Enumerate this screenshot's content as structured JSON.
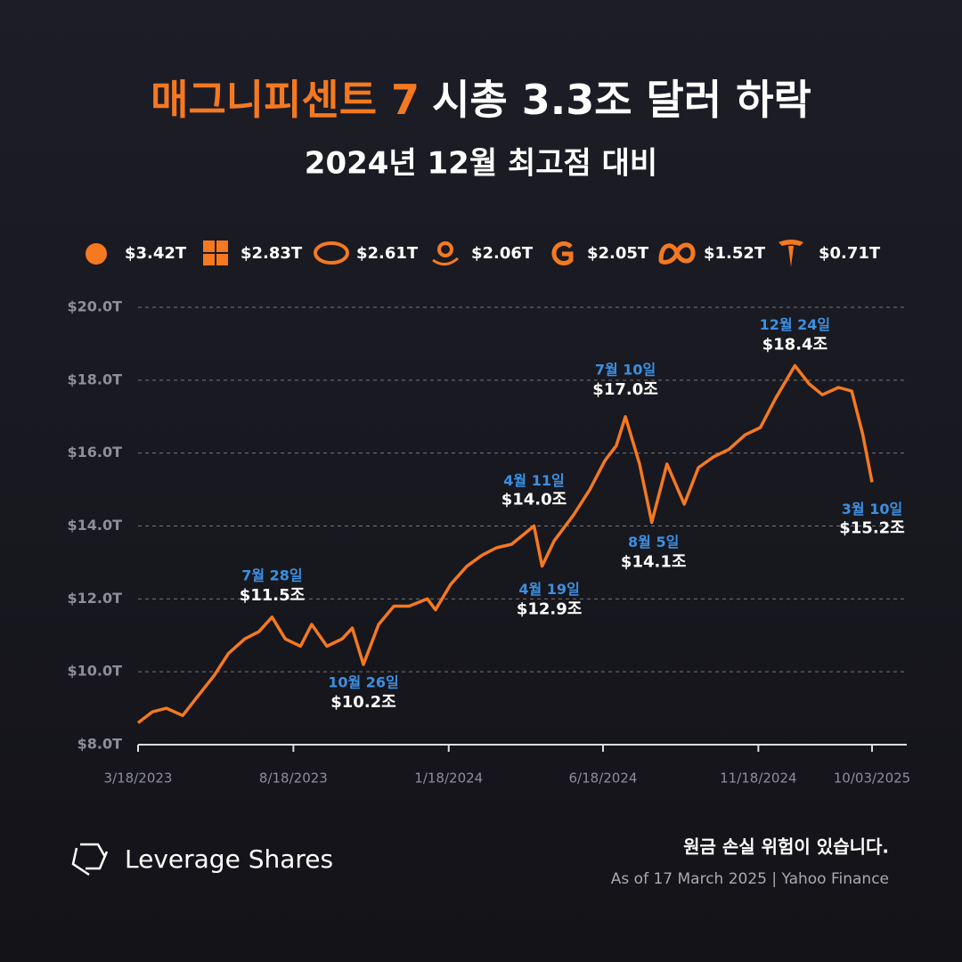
{
  "chart_data": {
    "type": "line",
    "title_highlight": "매그니피센트 7",
    "title": "시총 3.3조 달러 하락",
    "subtitle": "2024년 12월 최고점 대비",
    "legend": [
      "$3.42T",
      "$2.83T",
      "$2.61T",
      "$2.06T",
      "$2.05T",
      "$1.52T",
      "$0.71T"
    ],
    "x": [
      "2023-03-18",
      "2023-04-01",
      "2023-04-15",
      "2023-05-01",
      "2023-05-15",
      "2023-06-01",
      "2023-06-15",
      "2023-07-01",
      "2023-07-15",
      "2023-07-28",
      "2023-08-10",
      "2023-08-25",
      "2023-09-05",
      "2023-09-20",
      "2023-10-05",
      "2023-10-15",
      "2023-10-26",
      "2023-11-10",
      "2023-11-25",
      "2023-12-10",
      "2023-12-28",
      "2024-01-05",
      "2024-01-20",
      "2024-02-05",
      "2024-02-20",
      "2024-03-05",
      "2024-03-20",
      "2024-04-11",
      "2024-04-19",
      "2024-05-01",
      "2024-05-20",
      "2024-06-05",
      "2024-06-20",
      "2024-07-01",
      "2024-07-10",
      "2024-07-24",
      "2024-08-05",
      "2024-08-20",
      "2024-09-06",
      "2024-09-20",
      "2024-10-05",
      "2024-10-20",
      "2024-11-05",
      "2024-11-20",
      "2024-12-05",
      "2024-12-24",
      "2025-01-07",
      "2025-01-20",
      "2025-02-05",
      "2025-02-18",
      "2025-03-01",
      "2025-03-10"
    ],
    "series": [
      {
        "color": "#f47920",
        "values": [
          8.6,
          8.9,
          9.0,
          8.8,
          9.3,
          9.9,
          10.5,
          10.9,
          11.1,
          11.5,
          10.9,
          10.7,
          11.3,
          10.7,
          10.9,
          11.2,
          10.2,
          11.3,
          11.8,
          11.8,
          12.0,
          11.7,
          12.4,
          12.9,
          13.2,
          13.4,
          13.5,
          14.0,
          12.9,
          13.6,
          14.3,
          15.0,
          15.8,
          16.2,
          17.0,
          15.7,
          14.1,
          15.7,
          14.6,
          15.6,
          15.9,
          16.1,
          16.5,
          16.7,
          17.5,
          18.4,
          17.9,
          17.6,
          17.8,
          17.7,
          16.5,
          15.2
        ]
      }
    ],
    "annotations": [
      {
        "date_label": "7월 28일",
        "value_label": "$11.5조"
      },
      {
        "date_label": "10월 26일",
        "value_label": "$10.2조"
      },
      {
        "date_label": "4월 11일",
        "value_label": "$14.0조"
      },
      {
        "date_label": "4월 19일",
        "value_label": "$12.9조"
      },
      {
        "date_label": "7월 10일",
        "value_label": "$17.0조"
      },
      {
        "date_label": "8월 5일",
        "value_label": "$14.1조"
      },
      {
        "date_label": "12월 24일",
        "value_label": "$18.4조"
      },
      {
        "date_label": "3월 10일",
        "value_label": "$15.2조"
      }
    ],
    "xlim": [
      "2023-03-18",
      "2025-03-10"
    ],
    "xticks": [
      {
        "value": "2023-03-18",
        "label": "3/18/2023"
      },
      {
        "value": "2023-08-18",
        "label": "8/18/2023"
      },
      {
        "value": "2024-01-18",
        "label": "1/18/2024"
      },
      {
        "value": "2024-06-18",
        "label": "6/18/2024"
      },
      {
        "value": "2024-11-18",
        "label": "11/18/2024"
      },
      {
        "value": "2025-03-10",
        "label": "10/03/2025"
      }
    ],
    "ylim": [
      8,
      20
    ],
    "yticks": [
      {
        "value": 8,
        "label": "$8.0T"
      },
      {
        "value": 10,
        "label": "$10.0T"
      },
      {
        "value": 12,
        "label": "$12.0T"
      },
      {
        "value": 14,
        "label": "$14.0T"
      },
      {
        "value": 16,
        "label": "$16.0T"
      },
      {
        "value": 18,
        "label": "$18.0T"
      },
      {
        "value": 20,
        "label": "$20.0T"
      }
    ],
    "grid": true
  },
  "footer": {
    "brand": "Leverage Shares",
    "warning": "원금 손실 위험이 있습니다.",
    "source": "As of 17 March 2025 | Yahoo Finance"
  }
}
